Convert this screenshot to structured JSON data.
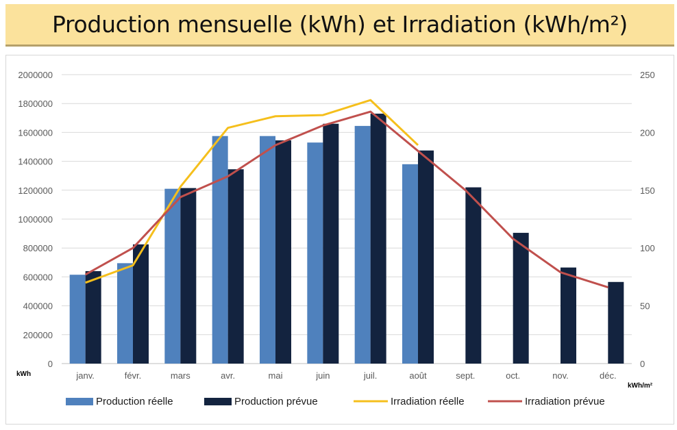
{
  "title": "Production mensuelle (kWh) et Irradiation (kWh/m²)",
  "chart_data": {
    "type": "bar",
    "categories": [
      "janv.",
      "févr.",
      "mars",
      "avr.",
      "mai",
      "juin",
      "juil.",
      "août",
      "sept.",
      "oct.",
      "nov.",
      "déc."
    ],
    "y_left": {
      "label": "kWh",
      "min": 0,
      "max": 2000000,
      "step": 200000
    },
    "y_right": {
      "label": "kWh/m²",
      "min": 0,
      "max": 250,
      "step": 50
    },
    "grid": true,
    "legend_position": "bottom",
    "series": [
      {
        "name": "Production réelle",
        "kind": "bar",
        "axis": "left",
        "color": "#4f81bd",
        "values": [
          615000,
          695000,
          1210000,
          1575000,
          1575000,
          1530000,
          1645000,
          1380000,
          null,
          null,
          null,
          null
        ]
      },
      {
        "name": "Production prévue",
        "kind": "bar",
        "axis": "left",
        "color": "#13233f",
        "values": [
          640000,
          825000,
          1215000,
          1345000,
          1545000,
          1660000,
          1730000,
          1475000,
          1220000,
          905000,
          665000,
          565000
        ]
      },
      {
        "name": "Irradiation réelle",
        "kind": "line",
        "axis": "right",
        "color": "#f5bf1c",
        "values": [
          70,
          85,
          153,
          204,
          214,
          215,
          228,
          189,
          null,
          null,
          null,
          null
        ]
      },
      {
        "name": "Irradiation prévue",
        "kind": "line",
        "axis": "right",
        "color": "#c0504d",
        "values": [
          77,
          100,
          144,
          162,
          189,
          206,
          218,
          184,
          150,
          108,
          79,
          66
        ]
      }
    ]
  }
}
